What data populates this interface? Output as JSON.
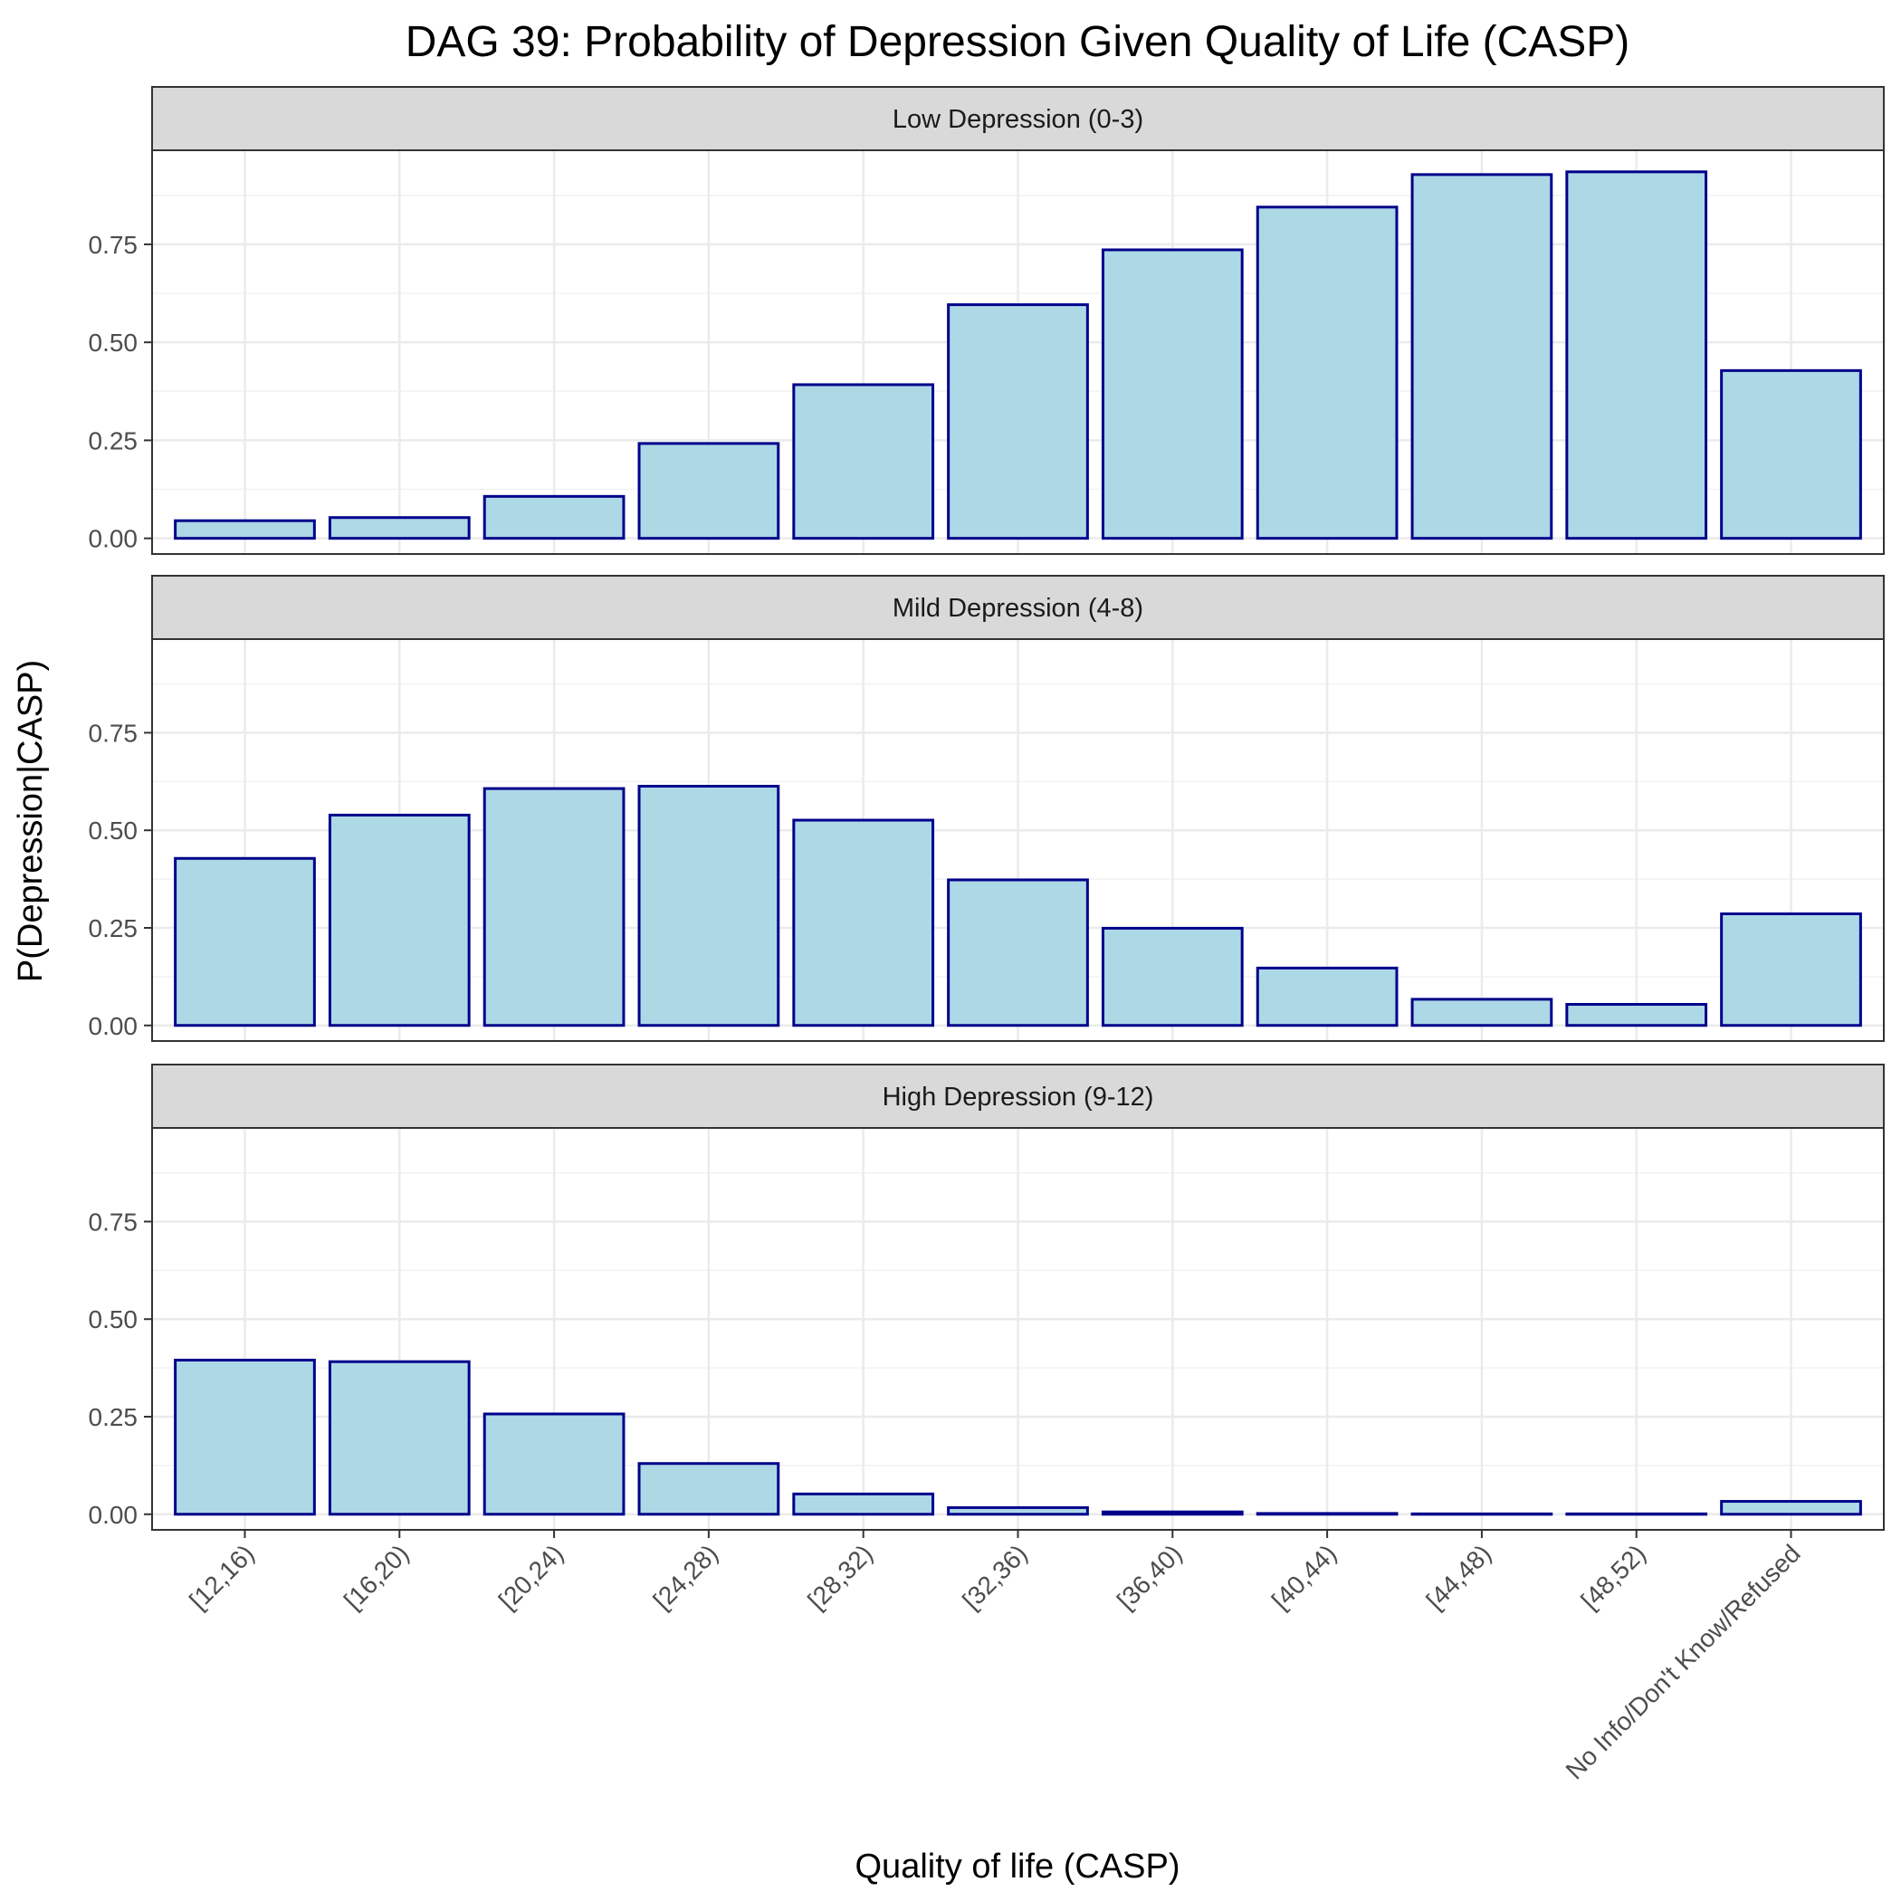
{
  "chart_data": {
    "type": "bar",
    "title": "DAG 39: Probability of Depression Given Quality of Life (CASP)",
    "xlabel": "Quality of life (CASP)",
    "ylabel": "P(Depression|CASP)",
    "ylim": [
      -0.04,
      0.99
    ],
    "yticks": [
      0,
      0.25,
      0.5,
      0.75
    ],
    "ytick_labels": [
      "0.00",
      "0.25",
      "0.50",
      "0.75"
    ],
    "grid": true,
    "categories": [
      "[12,16)",
      "[16,20)",
      "[20,24)",
      "[24,28)",
      "[28,32)",
      "[32,36)",
      "[36,40)",
      "[40,44)",
      "[44,48)",
      "[48,52)",
      "No Info/Don't Know/Refused"
    ],
    "bar_fill": "#ADD8E6",
    "bar_outline": "#00008B",
    "strip_fill": "#D9D9D9",
    "panels": [
      {
        "name": "Low Depression (0-3)",
        "values": [
          0.045,
          0.053,
          0.107,
          0.242,
          0.392,
          0.596,
          0.736,
          0.845,
          0.928,
          0.935,
          0.428
        ]
      },
      {
        "name": "Mild Depression (4-8)",
        "values": [
          0.428,
          0.539,
          0.607,
          0.613,
          0.526,
          0.373,
          0.249,
          0.147,
          0.067,
          0.054,
          0.286
        ]
      },
      {
        "name": "High Depression (9-12)",
        "values": [
          0.395,
          0.391,
          0.257,
          0.13,
          0.052,
          0.017,
          0.006,
          0.002,
          0.001,
          0.001,
          0.033
        ]
      }
    ]
  }
}
